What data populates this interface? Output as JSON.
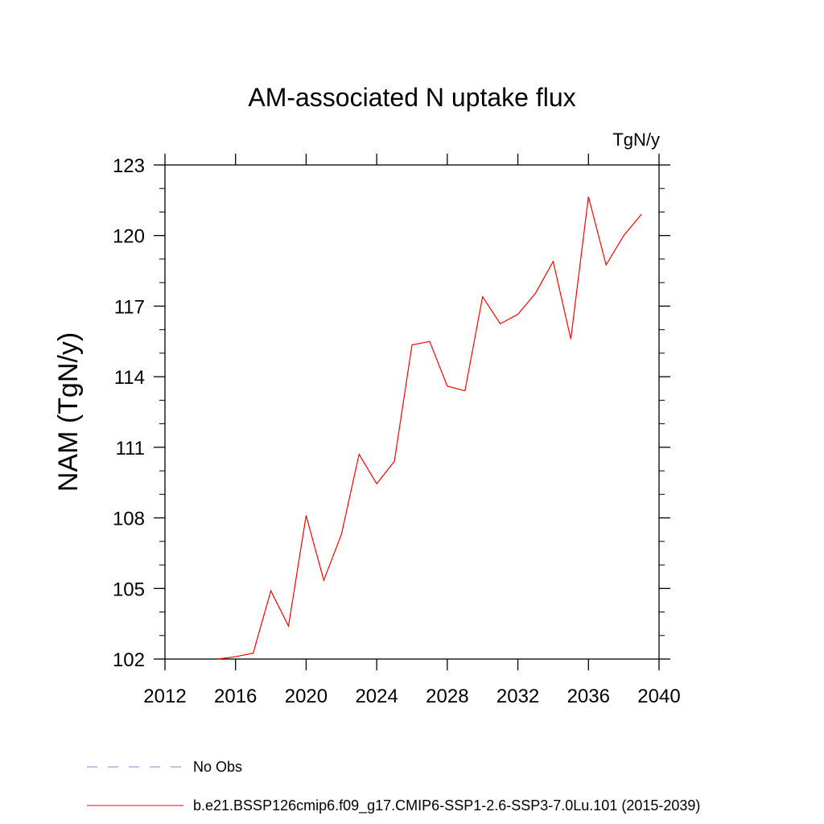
{
  "chart_data": {
    "type": "line",
    "title": "AM-associated N uptake flux",
    "units": "TgN/y",
    "ylabel": "NAM  (TgN/y)",
    "xlabel": "",
    "xlim": [
      2012,
      2040
    ],
    "ylim": [
      102,
      123
    ],
    "x_ticks": [
      "2012",
      "2016",
      "2020",
      "2024",
      "2028",
      "2032",
      "2036",
      "2040"
    ],
    "y_ticks": [
      "102",
      "105",
      "108",
      "111",
      "114",
      "117",
      "120",
      "123"
    ],
    "series": [
      {
        "name": "b.e21.BSSP126cmip6.f09_g17.CMIP6-SSP1-2.6-SSP3-7.0Lu.101 (2015-2039)",
        "color": "#ff0000",
        "x": [
          2015,
          2016,
          2017,
          2018,
          2019,
          2020,
          2021,
          2022,
          2023,
          2024,
          2025,
          2026,
          2027,
          2028,
          2029,
          2030,
          2031,
          2032,
          2033,
          2034,
          2035,
          2036,
          2037,
          2038,
          2039
        ],
        "y": [
          102.0,
          102.1,
          102.25,
          104.9,
          103.4,
          108.1,
          105.35,
          107.3,
          110.7,
          109.45,
          110.4,
          115.35,
          115.5,
          113.6,
          113.4,
          117.4,
          116.25,
          116.65,
          117.55,
          118.9,
          115.6,
          121.65,
          118.75,
          120.0,
          120.9
        ]
      }
    ],
    "legend": [
      {
        "label": "No Obs",
        "style": "dashed",
        "color": "#9080c0"
      },
      {
        "label": "b.e21.BSSP126cmip6.f09_g17.CMIP6-SSP1-2.6-SSP3-7.0Lu.101 (2015-2039)",
        "style": "solid",
        "color": "#ff0000"
      }
    ],
    "legend_position": "bottom-left",
    "grid": false
  }
}
